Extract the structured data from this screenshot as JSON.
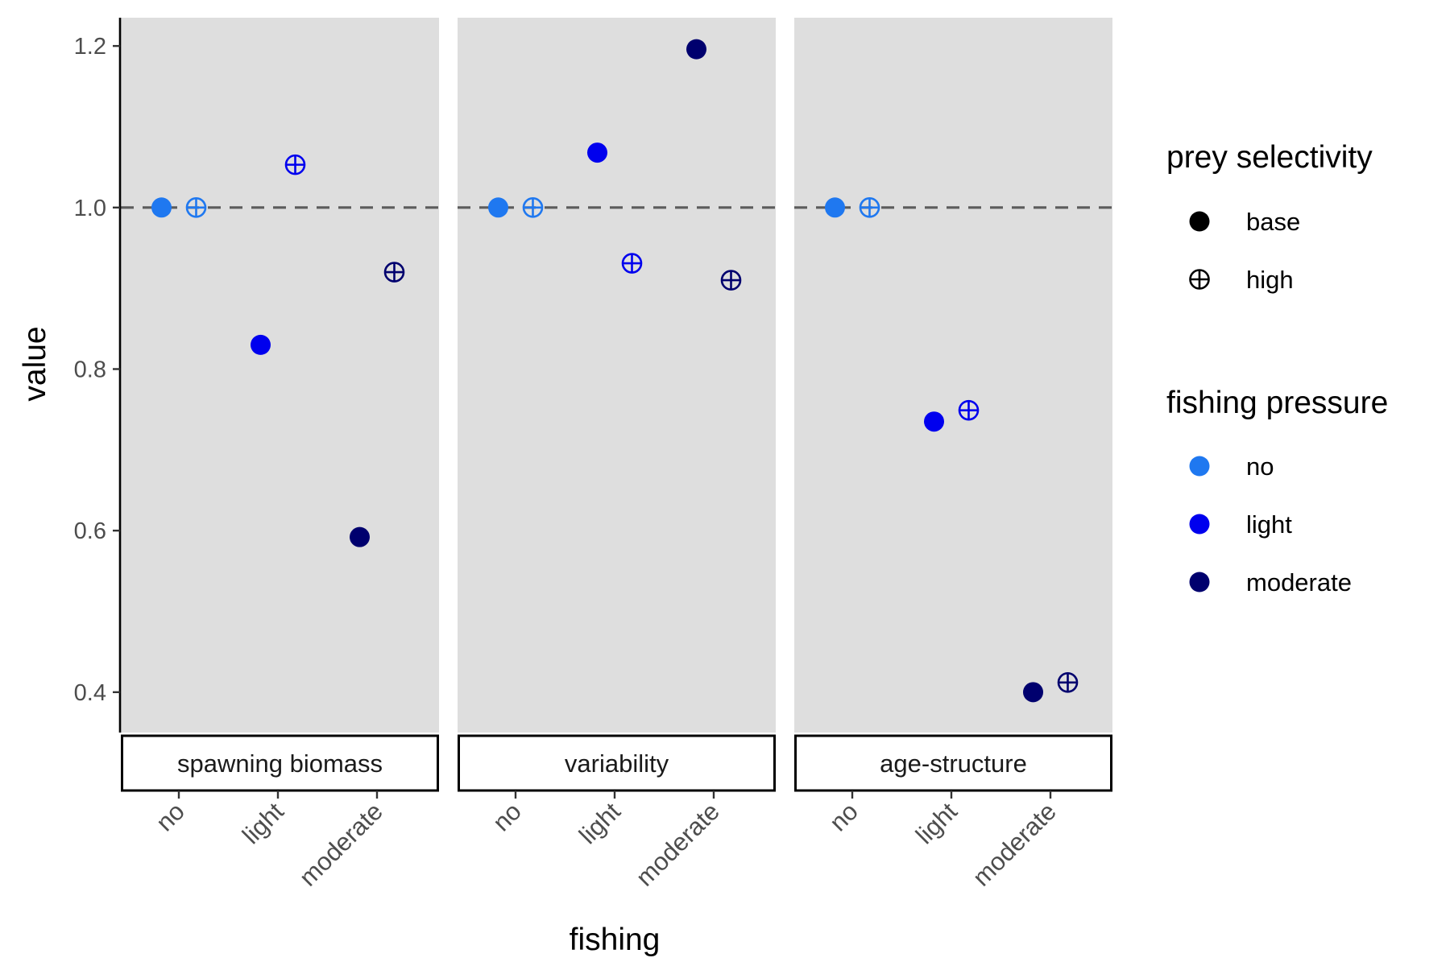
{
  "chart_data": {
    "type": "scatter",
    "facets": [
      "spawning biomass",
      "variability",
      "age-structure"
    ],
    "categories": [
      "no",
      "light",
      "moderate"
    ],
    "xlabel": "fishing",
    "ylabel": "value",
    "ylim": [
      0.35,
      1.235
    ],
    "yticks": [
      "0.4",
      "0.6",
      "0.8",
      "1.0",
      "1.2"
    ],
    "reference_line": 1.0,
    "grid": false,
    "legend_position": "right",
    "shape_legend": {
      "title": "prey selectivity",
      "items": [
        {
          "label": "base",
          "shape": "filled-circle"
        },
        {
          "label": "high",
          "shape": "circle-plus"
        }
      ]
    },
    "color_legend": {
      "title": "fishing pressure",
      "items": [
        {
          "label": "no",
          "color": "#1f78f0"
        },
        {
          "label": "light",
          "color": "#0000ee"
        },
        {
          "label": "moderate",
          "color": "#00006e"
        }
      ]
    },
    "points": [
      {
        "facet": "spawning biomass",
        "fishing": "no",
        "selectivity": "base",
        "value": 1.0
      },
      {
        "facet": "spawning biomass",
        "fishing": "no",
        "selectivity": "high",
        "value": 1.0
      },
      {
        "facet": "spawning biomass",
        "fishing": "light",
        "selectivity": "base",
        "value": 0.83
      },
      {
        "facet": "spawning biomass",
        "fishing": "light",
        "selectivity": "high",
        "value": 1.053
      },
      {
        "facet": "spawning biomass",
        "fishing": "moderate",
        "selectivity": "base",
        "value": 0.592
      },
      {
        "facet": "spawning biomass",
        "fishing": "moderate",
        "selectivity": "high",
        "value": 0.92
      },
      {
        "facet": "variability",
        "fishing": "no",
        "selectivity": "base",
        "value": 1.0
      },
      {
        "facet": "variability",
        "fishing": "no",
        "selectivity": "high",
        "value": 1.0
      },
      {
        "facet": "variability",
        "fishing": "light",
        "selectivity": "base",
        "value": 1.068
      },
      {
        "facet": "variability",
        "fishing": "light",
        "selectivity": "high",
        "value": 0.931
      },
      {
        "facet": "variability",
        "fishing": "moderate",
        "selectivity": "base",
        "value": 1.196
      },
      {
        "facet": "variability",
        "fishing": "moderate",
        "selectivity": "high",
        "value": 0.91
      },
      {
        "facet": "age-structure",
        "fishing": "no",
        "selectivity": "base",
        "value": 1.0
      },
      {
        "facet": "age-structure",
        "fishing": "no",
        "selectivity": "high",
        "value": 1.0
      },
      {
        "facet": "age-structure",
        "fishing": "light",
        "selectivity": "base",
        "value": 0.735
      },
      {
        "facet": "age-structure",
        "fishing": "light",
        "selectivity": "high",
        "value": 0.749
      },
      {
        "facet": "age-structure",
        "fishing": "moderate",
        "selectivity": "base",
        "value": 0.4
      },
      {
        "facet": "age-structure",
        "fishing": "moderate",
        "selectivity": "high",
        "value": 0.412
      }
    ]
  }
}
